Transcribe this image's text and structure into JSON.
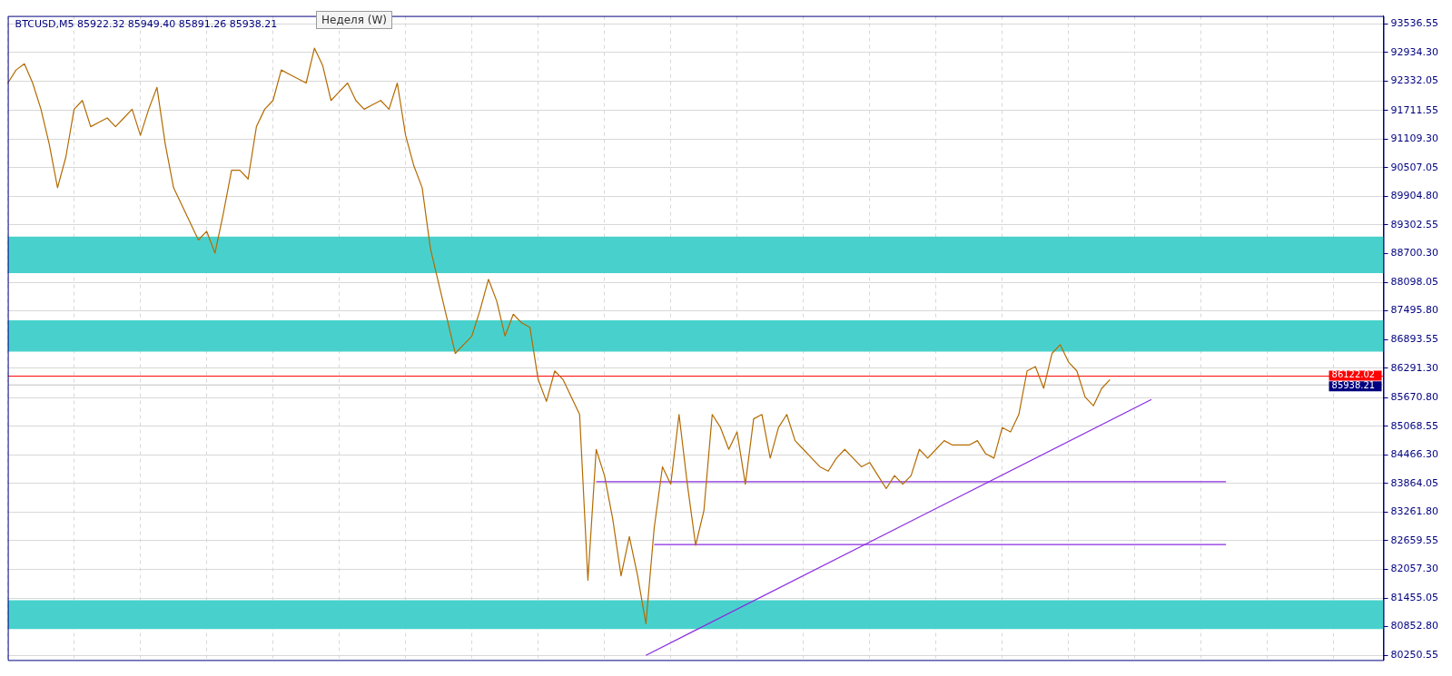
{
  "chart_data": {
    "type": "line",
    "title": "BTCUSD,M5 85922.32 85949.40 85891.26 85938.21",
    "annotations": [
      "Неделя (W)"
    ],
    "categories": [
      null,
      null,
      null,
      null,
      null,
      null,
      null,
      null,
      null,
      null,
      null,
      null,
      null,
      null,
      null,
      null,
      null,
      null,
      null,
      null,
      null,
      null,
      null,
      null,
      null,
      null,
      null,
      null,
      null,
      null,
      null,
      null,
      null,
      null,
      null,
      null,
      null,
      null,
      null,
      null,
      null,
      null,
      null,
      null,
      null,
      null,
      null,
      null,
      null,
      null,
      null,
      null,
      null,
      null,
      null,
      null,
      null,
      null,
      null,
      null,
      null,
      null,
      null,
      null,
      null,
      null,
      null,
      null,
      null,
      null,
      null,
      null,
      null,
      null,
      null,
      null,
      null,
      null,
      null,
      null,
      null,
      null,
      null,
      null,
      null,
      null,
      null,
      null,
      null,
      null,
      null,
      null,
      null,
      null,
      null,
      null,
      null,
      null,
      null,
      null,
      null,
      null,
      null,
      null,
      null,
      null,
      null,
      null,
      null,
      null,
      null,
      null,
      null,
      null,
      null,
      null,
      null,
      null,
      null,
      null,
      null,
      null,
      null,
      null,
      null,
      null,
      null,
      null,
      null,
      null,
      null,
      null,
      null,
      null,
      null,
      null,
      null,
      null,
      null,
      null,
      null,
      null,
      null,
      null,
      null,
      null,
      null,
      null,
      null,
      null,
      null,
      null,
      null,
      null,
      null,
      null,
      null,
      null,
      null,
      null,
      null,
      null,
      null,
      null,
      null,
      null,
      null
    ],
    "series": [
      {
        "color": "#b36b00",
        "values": [
          92289,
          92564,
          92693,
          92289,
          91738,
          91004,
          90087,
          90729,
          91738,
          91922,
          91371,
          91463,
          91555,
          91371,
          91555,
          91738,
          91188,
          91738,
          92197,
          91004,
          90087,
          89720,
          89353,
          88986,
          89169,
          88711,
          89536,
          90454,
          90454,
          90270,
          91371,
          91738,
          91922,
          92564,
          92472,
          92381,
          92289,
          93023,
          92656,
          91922,
          92105,
          92289,
          91922,
          91738,
          91830,
          91922,
          91738,
          92289,
          91188,
          90546,
          90087,
          88802,
          88068,
          87334,
          86600,
          86784,
          86967,
          87518,
          88160,
          87701,
          86967,
          87426,
          87243,
          87151,
          86050,
          85591,
          86233,
          86050,
          85683,
          85316,
          81829,
          84582,
          84031,
          83114,
          81921,
          82747,
          81921,
          80912,
          82930,
          84215,
          83848,
          85316,
          83848,
          82563,
          83297,
          85316,
          85041,
          84582,
          84949,
          83848,
          85224,
          85316,
          84398,
          85041,
          85316,
          84765,
          84582,
          84398,
          84215,
          84123,
          84398,
          84582,
          84398,
          84215,
          84306,
          84031,
          83756,
          84031,
          83848,
          84031,
          84582,
          84398,
          84582,
          84765,
          84673,
          84673,
          84673,
          84765,
          84490,
          84398,
          85041,
          84949,
          85316,
          86233,
          86325,
          85866,
          86600,
          86784,
          86417,
          86233,
          85683,
          85499,
          85866,
          86050,
          null,
          null,
          null,
          null,
          null,
          null,
          null,
          null,
          null,
          null,
          null,
          null,
          null,
          null,
          null,
          null,
          null,
          null,
          null,
          null,
          null,
          null,
          null,
          null,
          null,
          null,
          null,
          null,
          null,
          null,
          null,
          null,
          null
        ]
      },
      {
        "type": "line",
        "color": "#8a2be2",
        "values": [
          null,
          null,
          null,
          null,
          null,
          null,
          null,
          null,
          null,
          null,
          null,
          null,
          null,
          null,
          null,
          null,
          null,
          null,
          null,
          null,
          null,
          null,
          null,
          null,
          null,
          null,
          null,
          null,
          null,
          null,
          null,
          null,
          null,
          null,
          null,
          null,
          null,
          null,
          null,
          null,
          null,
          null,
          null,
          null,
          null,
          null,
          null,
          null,
          null,
          null,
          null,
          null,
          null,
          null,
          null,
          null,
          null,
          null,
          null,
          null,
          null,
          null,
          null,
          null,
          null,
          null,
          null,
          null,
          null,
          null,
          null,
          null,
          null,
          null,
          null,
          null,
          null,
          80250,
          null,
          null,
          null,
          null,
          null,
          null,
          null,
          null,
          null,
          null,
          null,
          null,
          null,
          null,
          null,
          null,
          null,
          null,
          null,
          null,
          null,
          null,
          null,
          null,
          null,
          null,
          null,
          null,
          null,
          null,
          null,
          null,
          null,
          null,
          null,
          null,
          null,
          null,
          null,
          null,
          null,
          null,
          null,
          null,
          null,
          null,
          null,
          null,
          null,
          null,
          null,
          null,
          null,
          null,
          null,
          null,
          null,
          null,
          null,
          null,
          85630,
          null,
          null,
          null,
          null,
          null,
          null,
          null,
          null,
          null,
          null,
          null,
          null,
          null,
          null,
          null,
          null,
          null,
          null,
          null,
          null,
          null,
          null,
          null,
          null,
          null,
          null,
          null,
          null
        ]
      },
      {
        "type": "line",
        "color": "#8a2be2",
        "values": [
          null,
          null,
          null,
          null,
          null,
          null,
          null,
          null,
          null,
          null,
          null,
          null,
          null,
          null,
          null,
          null,
          null,
          null,
          null,
          null,
          null,
          null,
          null,
          null,
          null,
          null,
          null,
          null,
          null,
          null,
          null,
          null,
          null,
          null,
          null,
          null,
          null,
          null,
          null,
          null,
          null,
          null,
          null,
          null,
          null,
          null,
          null,
          null,
          null,
          null,
          null,
          null,
          null,
          null,
          null,
          null,
          null,
          null,
          null,
          null,
          null,
          null,
          null,
          null,
          null,
          null,
          null,
          null,
          null,
          null,
          null,
          83900,
          null,
          null,
          null,
          null,
          null,
          null,
          null,
          null,
          null,
          null,
          null,
          null,
          null,
          null,
          null,
          null,
          null,
          null,
          null,
          null,
          null,
          null,
          null,
          null,
          null,
          null,
          null,
          null,
          null,
          null,
          null,
          null,
          null,
          null,
          null,
          null,
          null,
          null,
          null,
          null,
          null,
          null,
          null,
          null,
          null,
          null,
          null,
          null,
          null,
          null,
          null,
          null,
          null,
          null,
          null,
          null,
          null,
          null,
          null,
          null,
          null,
          null,
          null,
          null,
          null,
          null,
          null,
          null,
          null,
          null,
          null,
          null,
          null,
          null,
          null,
          83900,
          null,
          null,
          null,
          null,
          null,
          null,
          null,
          null,
          null,
          null,
          null,
          null,
          null,
          null,
          null,
          null,
          null,
          null,
          null
        ]
      },
      {
        "type": "line",
        "color": "#8a2be2",
        "values": [
          null,
          null,
          null,
          null,
          null,
          null,
          null,
          null,
          null,
          null,
          null,
          null,
          null,
          null,
          null,
          null,
          null,
          null,
          null,
          null,
          null,
          null,
          null,
          null,
          null,
          null,
          null,
          null,
          null,
          null,
          null,
          null,
          null,
          null,
          null,
          null,
          null,
          null,
          null,
          null,
          null,
          null,
          null,
          null,
          null,
          null,
          null,
          null,
          null,
          null,
          null,
          null,
          null,
          null,
          null,
          null,
          null,
          null,
          null,
          null,
          null,
          null,
          null,
          null,
          null,
          null,
          null,
          null,
          null,
          null,
          null,
          null,
          null,
          null,
          null,
          null,
          null,
          null,
          82580,
          null,
          null,
          null,
          null,
          null,
          null,
          null,
          null,
          null,
          null,
          null,
          null,
          null,
          null,
          null,
          null,
          null,
          null,
          null,
          null,
          null,
          null,
          null,
          null,
          null,
          null,
          null,
          null,
          null,
          null,
          null,
          null,
          null,
          null,
          null,
          null,
          null,
          null,
          null,
          null,
          null,
          null,
          null,
          null,
          null,
          null,
          null,
          null,
          null,
          null,
          null,
          null,
          null,
          null,
          null,
          null,
          null,
          null,
          null,
          null,
          null,
          null,
          null,
          null,
          null,
          null,
          null,
          null,
          82580,
          null,
          null,
          null,
          null,
          null,
          null,
          null,
          null,
          null,
          null,
          null,
          null,
          null,
          null,
          null,
          null,
          null,
          null,
          null
        ]
      }
    ],
    "ylim": [
      80150,
      93700
    ],
    "yticks": [
      {
        "value": 80250.55,
        "label": "80250.55"
      },
      {
        "value": 80852.8,
        "label": "80852.80"
      },
      {
        "value": 81455.05,
        "label": "81455.05"
      },
      {
        "value": 82057.3,
        "label": "82057.30"
      },
      {
        "value": 82659.55,
        "label": "82659.55"
      },
      {
        "value": 83261.8,
        "label": "83261.80"
      },
      {
        "value": 83864.05,
        "label": "83864.05"
      },
      {
        "value": 84466.3,
        "label": "84466.30"
      },
      {
        "value": 85068.55,
        "label": "85068.55"
      },
      {
        "value": 85670.8,
        "label": "85670.80"
      },
      {
        "value": 86291.3,
        "label": "86291.30"
      },
      {
        "value": 86893.55,
        "label": "86893.55"
      },
      {
        "value": 87495.8,
        "label": "87495.80"
      },
      {
        "value": 88098.05,
        "label": "88098.05"
      },
      {
        "value": 88700.3,
        "label": "88700.30"
      },
      {
        "value": 89302.55,
        "label": "89302.55"
      },
      {
        "value": 89904.8,
        "label": "89904.80"
      },
      {
        "value": 90507.05,
        "label": "90507.05"
      },
      {
        "value": 91109.3,
        "label": "91109.30"
      },
      {
        "value": 91711.55,
        "label": "91711.55"
      },
      {
        "value": 92332.05,
        "label": "92332.05"
      },
      {
        "value": 92934.3,
        "label": "92934.30"
      },
      {
        "value": 93536.55,
        "label": "93536.55"
      }
    ],
    "ref_lines": [
      {
        "axis": "y",
        "value": 86122.02,
        "label": "86122.02",
        "color": "#ff0000"
      },
      {
        "axis": "y",
        "value": 85938.21,
        "label": "85938.21",
        "color": "#c0c0c0"
      }
    ],
    "bands": [
      {
        "axis": "y",
        "from": 88288,
        "to": 89059,
        "color": "#48d1cc"
      },
      {
        "axis": "y",
        "from": 86637,
        "to": 87297,
        "color": "#48d1cc"
      },
      {
        "axis": "y",
        "from": 80802,
        "to": 81407,
        "color": "#48d1cc"
      }
    ],
    "grid": true,
    "legend": false,
    "tick_labels": "y"
  }
}
